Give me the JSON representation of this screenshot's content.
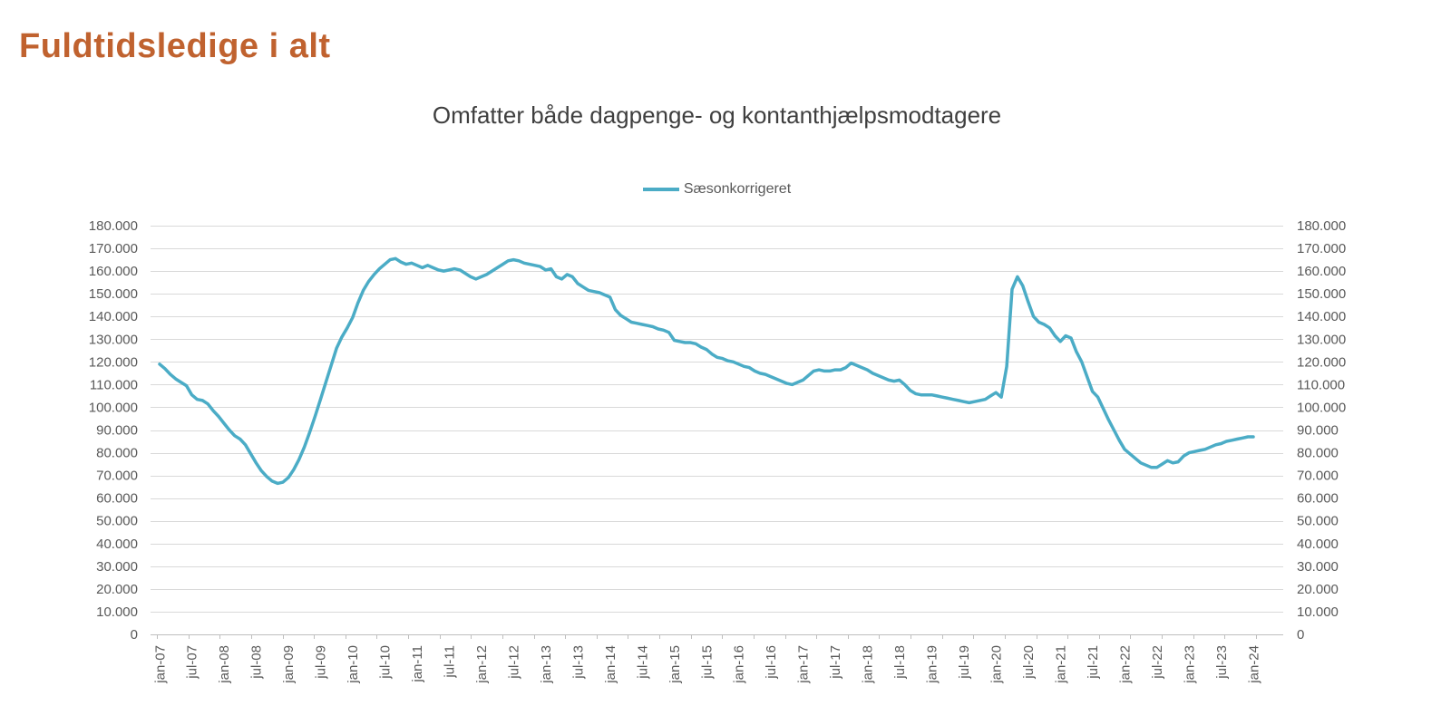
{
  "page_title": "Fuldtidsledige i alt",
  "chart": {
    "subtitle": "Omfatter både dagpenge- og kontanthjælpsmodtagere",
    "legend": {
      "label": "Sæsonkorrigeret",
      "color": "#4BACC6"
    }
  },
  "colors": {
    "title": "#C0622F",
    "line": "#4BACC6",
    "gridline": "#D9D9D9",
    "axis": "#BFBFBF",
    "tick_text": "#595959",
    "subtitle_text": "#3F3F3F"
  },
  "chart_data": {
    "type": "line",
    "title": "Omfatter både dagpenge- og kontanthjælpsmodtagere",
    "legend_position": "top-center",
    "grid": true,
    "x_range": "jan-07 to jan-24, monthly",
    "x_tick_labels": [
      "jan-07",
      "jul-07",
      "jan-08",
      "jul-08",
      "jan-09",
      "jul-09",
      "jan-10",
      "jul-10",
      "jan-11",
      "jul-11",
      "jan-12",
      "jul-12",
      "jan-13",
      "jul-13",
      "jan-14",
      "jul-14",
      "jan-15",
      "jul-15",
      "jan-16",
      "jul-16",
      "jan-17",
      "jul-17",
      "jan-18",
      "jul-18",
      "jan-19",
      "jul-19",
      "jan-20",
      "jul-20",
      "jan-21",
      "jul-21",
      "jan-22",
      "jul-22",
      "jan-23",
      "jul-23",
      "jan-24"
    ],
    "x_tick_every_n_points": 6,
    "y_axis": {
      "min": 0,
      "max": 180000,
      "tick_step": 10000,
      "tick_labels": [
        "0",
        "10.000",
        "20.000",
        "30.000",
        "40.000",
        "50.000",
        "60.000",
        "70.000",
        "80.000",
        "90.000",
        "100.000",
        "110.000",
        "120.000",
        "130.000",
        "140.000",
        "150.000",
        "160.000",
        "170.000",
        "180.000"
      ],
      "sides": "left-and-right"
    },
    "series": [
      {
        "name": "Sæsonkorrigeret",
        "color": "#4BACC6",
        "values": [
          119000,
          117000,
          114500,
          112500,
          111000,
          109500,
          105500,
          103500,
          103000,
          101500,
          98500,
          96000,
          93000,
          90000,
          87500,
          86000,
          83500,
          79500,
          75500,
          72000,
          69500,
          67500,
          66500,
          67000,
          69000,
          72500,
          77000,
          82500,
          89000,
          96000,
          103500,
          111000,
          118500,
          126000,
          131000,
          135000,
          139500,
          146000,
          151500,
          155500,
          158500,
          161000,
          163000,
          165000,
          165500,
          164000,
          163000,
          163500,
          162500,
          161500,
          162500,
          161500,
          160500,
          160000,
          160500,
          161000,
          160500,
          159000,
          157500,
          156500,
          157500,
          158500,
          160000,
          161500,
          163000,
          164500,
          165000,
          164500,
          163500,
          163000,
          162500,
          162000,
          160500,
          161000,
          157500,
          156500,
          158500,
          157500,
          154500,
          153000,
          151500,
          151000,
          150500,
          149500,
          148500,
          143000,
          140500,
          139000,
          137500,
          137000,
          136500,
          136000,
          135500,
          134500,
          134000,
          133000,
          129500,
          129000,
          128500,
          128500,
          128000,
          126500,
          125500,
          123500,
          122000,
          121500,
          120500,
          120000,
          119000,
          118000,
          117500,
          116000,
          115000,
          114500,
          113500,
          112500,
          111500,
          110500,
          110000,
          111000,
          112000,
          114000,
          116000,
          116500,
          116000,
          116000,
          116500,
          116500,
          117500,
          119500,
          118500,
          117500,
          116500,
          115000,
          114000,
          113000,
          112000,
          111500,
          112000,
          110000,
          107500,
          106000,
          105500,
          105500,
          105500,
          105000,
          104500,
          104000,
          103500,
          103000,
          102500,
          102000,
          102500,
          103000,
          103500,
          105000,
          106500,
          104500,
          118000,
          152000,
          157500,
          153500,
          146500,
          140000,
          137500,
          136500,
          135000,
          131500,
          129000,
          131500,
          130500,
          124500,
          120000,
          113500,
          107000,
          104500,
          99500,
          94500,
          90000,
          85500,
          81500,
          79500,
          77500,
          75500,
          74500,
          73500,
          73500,
          75000,
          76500,
          75500,
          76000,
          78500,
          80000,
          80500,
          81000,
          81500,
          82500,
          83500,
          84000,
          85000,
          85500,
          86000,
          86500,
          87000,
          87000
        ]
      }
    ]
  }
}
